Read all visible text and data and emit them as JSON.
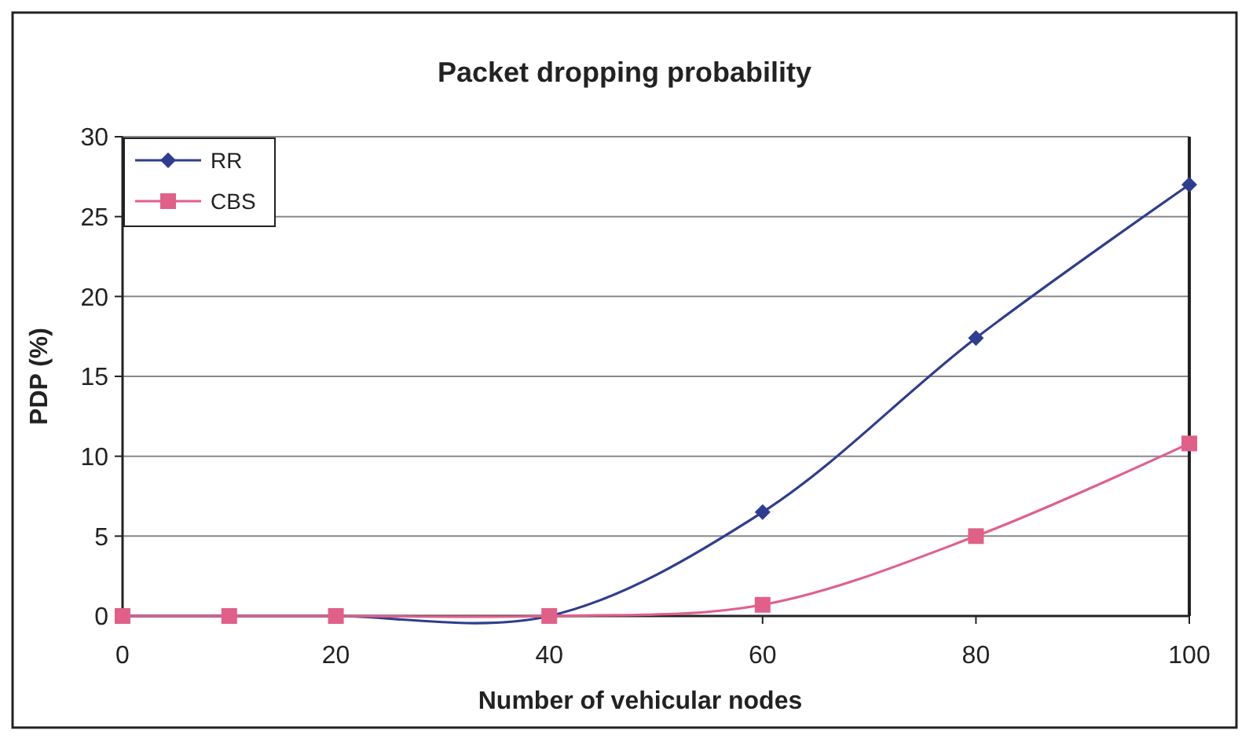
{
  "chart_data": {
    "type": "line",
    "title": "Packet dropping probability",
    "xlabel": "Number of vehicular nodes",
    "ylabel": "PDP (%)",
    "x": [
      0,
      10,
      20,
      40,
      60,
      80,
      100
    ],
    "series": [
      {
        "name": "RR",
        "color": "#2e3d8f",
        "marker": "diamond",
        "values": [
          0,
          0,
          0,
          0,
          6.5,
          17.4,
          27
        ]
      },
      {
        "name": "CBS",
        "color": "#e0608a",
        "marker": "square",
        "values": [
          0,
          0,
          0,
          0,
          0.7,
          5,
          10.8
        ]
      }
    ],
    "xlim": [
      0,
      100
    ],
    "xticks": [
      0,
      20,
      40,
      60,
      80,
      100
    ],
    "ylim": [
      0,
      30
    ],
    "yticks": [
      0,
      5,
      10,
      15,
      20,
      25,
      30
    ],
    "grid": "y",
    "legend": "top left",
    "line_style": "solid"
  }
}
